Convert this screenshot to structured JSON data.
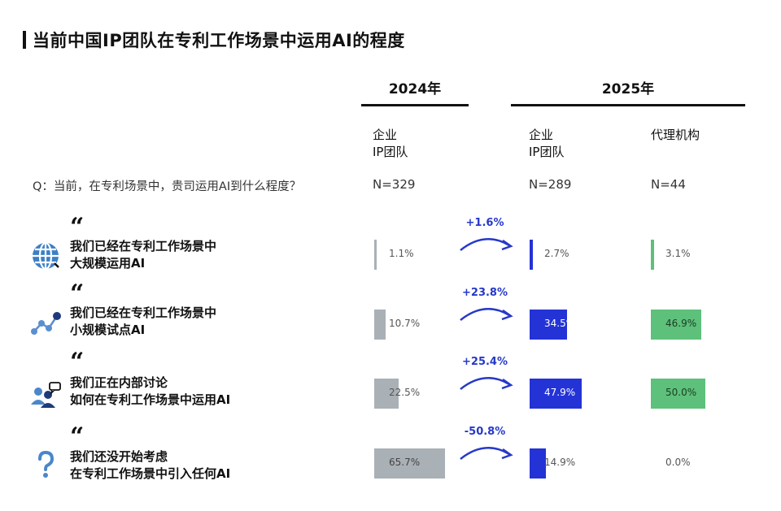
{
  "title": "当前中国IP团队在专利工作场景中运用AI的程度",
  "years": [
    "2024年",
    "2025年"
  ],
  "columns": [
    {
      "line1": "企业",
      "line2": "IP团队",
      "n": "N=329"
    },
    {
      "line1": "企业",
      "line2": "IP团队",
      "n": "N=289"
    },
    {
      "line1": "代理机构",
      "line2": "",
      "n": "N=44"
    }
  ],
  "question": "Q：当前，在专利场景中，贵司运用AI到什么程度？",
  "colors": {
    "y2024": "#a9b0b6",
    "enterprise2025": "#2433d6",
    "agency2025": "#5dc07b",
    "change": "#2639c8"
  },
  "rows": [
    {
      "icon": "globe-icon",
      "line1": "我们已经在专利工作场景中",
      "line2": "大规模运用AI",
      "change": "+1.6%",
      "labels": [
        "1.1%",
        "2.7%",
        "3.1%"
      ]
    },
    {
      "icon": "network-nodes-icon",
      "line1": "我们已经在专利工作场景中",
      "line2": "小规模试点AI",
      "change": "+23.8%",
      "labels": [
        "10.7%",
        "34.5%",
        "46.9%"
      ]
    },
    {
      "icon": "discussion-people-icon",
      "line1": "我们正在内部讨论",
      "line2": "如何在专利工作场景中运用AI",
      "change": "+25.4%",
      "labels": [
        "22.5%",
        "47.9%",
        "50.0%"
      ]
    },
    {
      "icon": "question-mark-icon",
      "line1": "我们还没开始考虑",
      "line2": "在专利工作场景中引入任何AI",
      "change": "-50.8%",
      "labels": [
        "65.7%",
        "14.9%",
        "0.0%"
      ]
    }
  ],
  "chart_data": {
    "type": "bar",
    "categories": [
      "我们已经在专利工作场景中大规模运用AI",
      "我们已经在专利工作场景中小规模试点AI",
      "我们正在内部讨论如何在专利工作场景中运用AI",
      "我们还没开始考虑在专利工作场景中引入任何AI"
    ],
    "series": [
      {
        "values": [
          1.1,
          10.7,
          22.5,
          65.7
        ]
      },
      {
        "values": [
          2.7,
          34.5,
          47.9,
          14.9
        ]
      },
      {
        "values": [
          3.1,
          46.9,
          50.0,
          0.0
        ]
      }
    ],
    "changes": [
      1.6,
      23.8,
      25.4,
      -50.8
    ]
  }
}
